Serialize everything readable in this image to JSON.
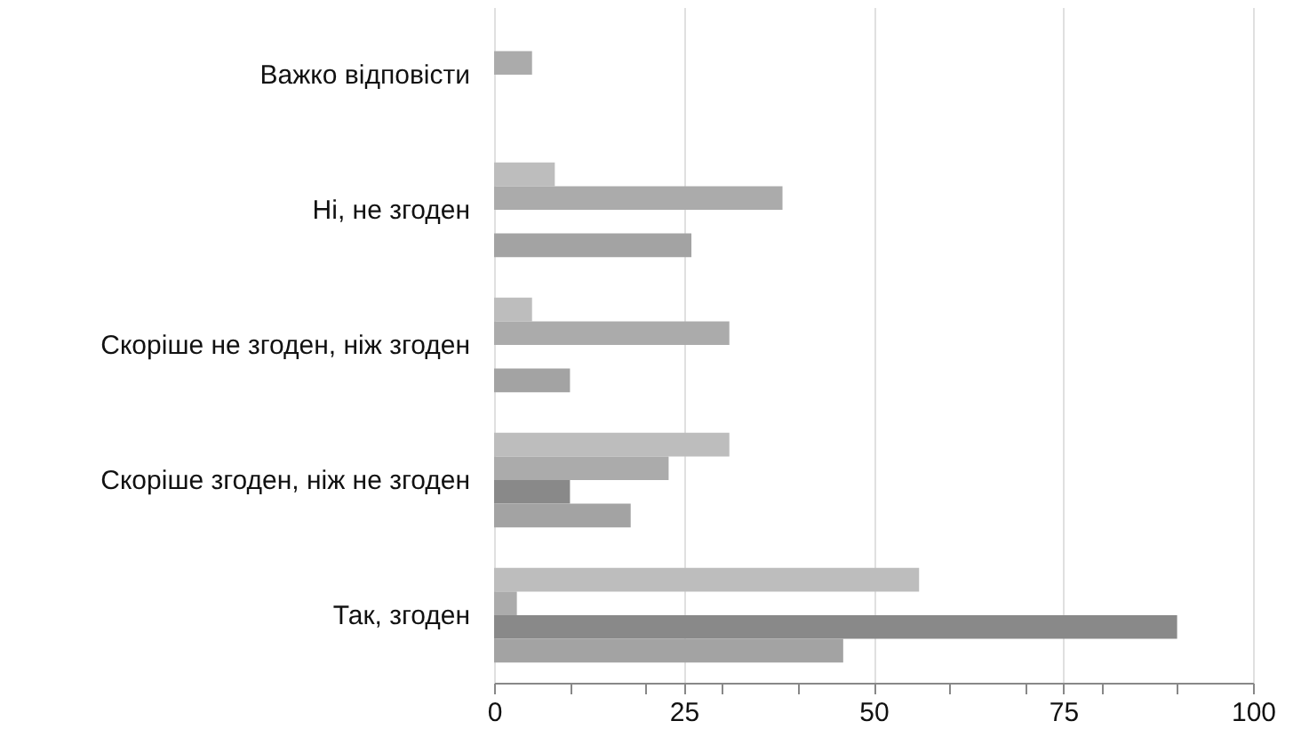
{
  "chart_data": {
    "type": "bar",
    "orientation": "horizontal",
    "categories": [
      "Важко відповісти",
      "Ні, не згоден",
      "Скоріше не згоден, ніж згоден",
      "Скоріше згоден, ніж не згоден",
      "Так, згоден"
    ],
    "series": [
      {
        "color": "#bdbdbd",
        "values": [
          null,
          8,
          5,
          31,
          56
        ]
      },
      {
        "color": "#ababab",
        "values": [
          5,
          38,
          31,
          23,
          3
        ]
      },
      {
        "color": "#898989",
        "values": [
          null,
          null,
          null,
          10,
          90
        ]
      },
      {
        "color": "#a3a3a3",
        "values": [
          null,
          26,
          10,
          18,
          46
        ]
      }
    ],
    "xlim": [
      0,
      100
    ],
    "xticks": [
      0,
      {
        "value": 10,
        "label": null
      },
      {
        "value": 20,
        "label": null
      },
      25,
      {
        "value": 30,
        "label": null
      },
      {
        "value": 40,
        "label": null
      },
      50,
      {
        "value": 60,
        "label": null
      },
      {
        "value": 70,
        "label": null
      },
      75,
      {
        "value": 80,
        "label": null
      },
      {
        "value": 90,
        "label": null
      },
      100
    ],
    "grid": "x"
  }
}
